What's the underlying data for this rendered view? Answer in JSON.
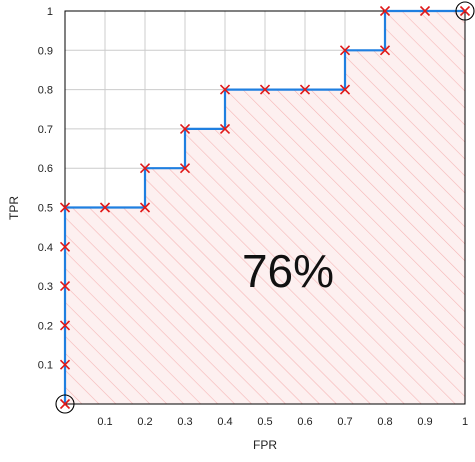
{
  "chart_data": {
    "type": "line",
    "xlabel": "FPR",
    "ylabel": "TPR",
    "xlim": [
      0,
      1
    ],
    "ylim": [
      0,
      1
    ],
    "x_ticks": [
      "0.1",
      "0.2",
      "0.3",
      "0.4",
      "0.5",
      "0.6",
      "0.7",
      "0.8",
      "0.9",
      "1"
    ],
    "y_ticks": [
      "0.1",
      "0.2",
      "0.3",
      "0.4",
      "0.5",
      "0.6",
      "0.7",
      "0.8",
      "0.9",
      "1"
    ],
    "grid": true,
    "annotation": "76%",
    "area_fill": "hatched",
    "series": [
      {
        "x": [
          0,
          0,
          0,
          0,
          0,
          0,
          0.1,
          0.2,
          0.2,
          0.3,
          0.3,
          0.4,
          0.4,
          0.5,
          0.6,
          0.7,
          0.7,
          0.8,
          0.8,
          0.9,
          1
        ],
        "y": [
          0,
          0.1,
          0.2,
          0.3,
          0.4,
          0.5,
          0.5,
          0.5,
          0.6,
          0.6,
          0.7,
          0.7,
          0.8,
          0.8,
          0.8,
          0.8,
          0.9,
          0.9,
          1,
          1,
          1
        ]
      }
    ],
    "endpoints_circled": [
      [
        0,
        0
      ],
      [
        1,
        1
      ]
    ],
    "colors": {
      "line": "#1f7fe0",
      "marker": "#e01818",
      "hatch": "#f5b5b5",
      "area": "#fdf0f0",
      "grid": "#cccccc"
    }
  }
}
